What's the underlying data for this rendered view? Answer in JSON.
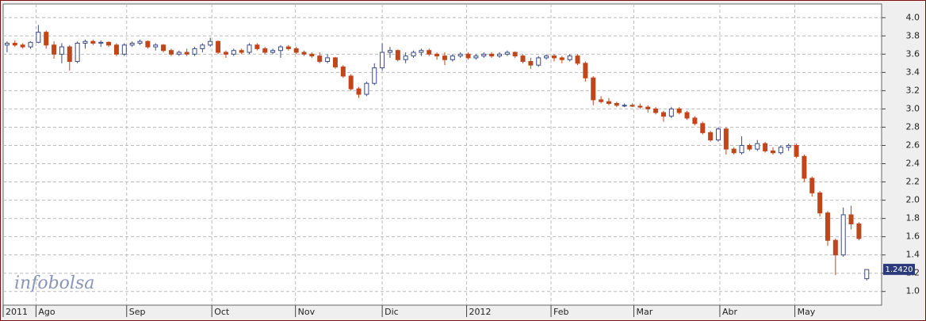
{
  "chart_data": {
    "type": "candlestick",
    "watermark": "infobolsa",
    "up_color": "#3a4a8a",
    "down_color": "#c0461b",
    "grid": true,
    "last_value": 1.242,
    "last_label": "1.2420",
    "xlim": [
      0,
      112.4
    ],
    "xticks": [
      {
        "value": 0,
        "label": "2011"
      },
      {
        "value": 4.2,
        "label": "Ago"
      },
      {
        "value": 15.8,
        "label": "Sep"
      },
      {
        "value": 26.7,
        "label": "Oct"
      },
      {
        "value": 37.4,
        "label": "Nov"
      },
      {
        "value": 48.5,
        "label": "Dic"
      },
      {
        "value": 59.3,
        "label": "2012"
      },
      {
        "value": 70.1,
        "label": "Feb"
      },
      {
        "value": 80.7,
        "label": "Mar"
      },
      {
        "value": 91.7,
        "label": "Abr"
      },
      {
        "value": 101.3,
        "label": "May"
      }
    ],
    "ylim": [
      0.85,
      4.15
    ],
    "yticks": [
      {
        "value": 1,
        "label": "1.0"
      },
      {
        "value": 1.2,
        "label": "1.2"
      },
      {
        "value": 1.4,
        "label": "1.4"
      },
      {
        "value": 1.6,
        "label": "1.6"
      },
      {
        "value": 1.8,
        "label": "1.8"
      },
      {
        "value": 2,
        "label": "2.0"
      },
      {
        "value": 2.2,
        "label": "2.2"
      },
      {
        "value": 2.4,
        "label": "2.4"
      },
      {
        "value": 2.6,
        "label": "2.6"
      },
      {
        "value": 2.8,
        "label": "2.8"
      },
      {
        "value": 3,
        "label": "3.0"
      },
      {
        "value": 3.2,
        "label": "3.2"
      },
      {
        "value": 3.4,
        "label": "3.4"
      },
      {
        "value": 3.6,
        "label": "3.6"
      },
      {
        "value": 3.8,
        "label": "3.8"
      },
      {
        "value": 4,
        "label": "4.0"
      }
    ],
    "candles": [
      [
        3.7,
        3.74,
        3.62,
        3.72
      ],
      [
        3.72,
        3.75,
        3.68,
        3.7
      ],
      [
        3.7,
        3.72,
        3.66,
        3.68
      ],
      [
        3.68,
        3.74,
        3.66,
        3.73
      ],
      [
        3.73,
        3.92,
        3.72,
        3.84
      ],
      [
        3.84,
        3.86,
        3.66,
        3.7
      ],
      [
        3.7,
        3.74,
        3.55,
        3.6
      ],
      [
        3.6,
        3.72,
        3.5,
        3.68
      ],
      [
        3.68,
        3.7,
        3.42,
        3.52
      ],
      [
        3.52,
        3.74,
        3.5,
        3.72
      ],
      [
        3.72,
        3.76,
        3.66,
        3.74
      ],
      [
        3.74,
        3.76,
        3.7,
        3.72
      ],
      [
        3.72,
        3.75,
        3.68,
        3.73
      ],
      [
        3.73,
        3.74,
        3.68,
        3.7
      ],
      [
        3.7,
        3.72,
        3.58,
        3.6
      ],
      [
        3.6,
        3.72,
        3.58,
        3.7
      ],
      [
        3.7,
        3.74,
        3.68,
        3.72
      ],
      [
        3.72,
        3.76,
        3.7,
        3.74
      ],
      [
        3.74,
        3.75,
        3.66,
        3.68
      ],
      [
        3.68,
        3.72,
        3.64,
        3.7
      ],
      [
        3.7,
        3.71,
        3.62,
        3.64
      ],
      [
        3.64,
        3.66,
        3.58,
        3.6
      ],
      [
        3.6,
        3.64,
        3.58,
        3.62
      ],
      [
        3.62,
        3.66,
        3.58,
        3.6
      ],
      [
        3.6,
        3.68,
        3.58,
        3.66
      ],
      [
        3.66,
        3.72,
        3.62,
        3.7
      ],
      [
        3.7,
        3.78,
        3.68,
        3.74
      ],
      [
        3.74,
        3.75,
        3.6,
        3.62
      ],
      [
        3.62,
        3.64,
        3.56,
        3.6
      ],
      [
        3.6,
        3.66,
        3.58,
        3.64
      ],
      [
        3.64,
        3.66,
        3.6,
        3.62
      ],
      [
        3.62,
        3.72,
        3.6,
        3.7
      ],
      [
        3.7,
        3.72,
        3.64,
        3.66
      ],
      [
        3.66,
        3.68,
        3.6,
        3.62
      ],
      [
        3.62,
        3.66,
        3.6,
        3.64
      ],
      [
        3.64,
        3.7,
        3.56,
        3.68
      ],
      [
        3.68,
        3.7,
        3.64,
        3.66
      ],
      [
        3.66,
        3.68,
        3.6,
        3.62
      ],
      [
        3.62,
        3.64,
        3.58,
        3.6
      ],
      [
        3.6,
        3.62,
        3.56,
        3.58
      ],
      [
        3.58,
        3.62,
        3.5,
        3.52
      ],
      [
        3.52,
        3.6,
        3.5,
        3.56
      ],
      [
        3.56,
        3.57,
        3.44,
        3.46
      ],
      [
        3.46,
        3.48,
        3.34,
        3.36
      ],
      [
        3.36,
        3.38,
        3.2,
        3.22
      ],
      [
        3.22,
        3.24,
        3.12,
        3.16
      ],
      [
        3.16,
        3.3,
        3.14,
        3.28
      ],
      [
        3.28,
        3.5,
        3.26,
        3.45
      ],
      [
        3.45,
        3.72,
        3.42,
        3.62
      ],
      [
        3.62,
        3.68,
        3.56,
        3.64
      ],
      [
        3.64,
        3.65,
        3.52,
        3.54
      ],
      [
        3.54,
        3.62,
        3.5,
        3.58
      ],
      [
        3.58,
        3.64,
        3.56,
        3.62
      ],
      [
        3.62,
        3.66,
        3.58,
        3.64
      ],
      [
        3.64,
        3.66,
        3.58,
        3.6
      ],
      [
        3.6,
        3.62,
        3.54,
        3.58
      ],
      [
        3.58,
        3.62,
        3.48,
        3.54
      ],
      [
        3.54,
        3.6,
        3.52,
        3.58
      ],
      [
        3.58,
        3.62,
        3.56,
        3.6
      ],
      [
        3.6,
        3.62,
        3.54,
        3.56
      ],
      [
        3.56,
        3.6,
        3.54,
        3.58
      ],
      [
        3.58,
        3.62,
        3.56,
        3.6
      ],
      [
        3.6,
        3.62,
        3.56,
        3.58
      ],
      [
        3.58,
        3.62,
        3.56,
        3.6
      ],
      [
        3.6,
        3.64,
        3.58,
        3.62
      ],
      [
        3.62,
        3.63,
        3.56,
        3.58
      ],
      [
        3.58,
        3.6,
        3.5,
        3.52
      ],
      [
        3.52,
        3.56,
        3.44,
        3.48
      ],
      [
        3.48,
        3.58,
        3.46,
        3.56
      ],
      [
        3.56,
        3.6,
        3.54,
        3.58
      ],
      [
        3.58,
        3.6,
        3.52,
        3.56
      ],
      [
        3.56,
        3.58,
        3.5,
        3.54
      ],
      [
        3.54,
        3.6,
        3.52,
        3.58
      ],
      [
        3.58,
        3.6,
        3.48,
        3.5
      ],
      [
        3.5,
        3.52,
        3.3,
        3.34
      ],
      [
        3.34,
        3.36,
        3.04,
        3.1
      ],
      [
        3.1,
        3.14,
        3.06,
        3.08
      ],
      [
        3.08,
        3.12,
        3.04,
        3.06
      ],
      [
        3.06,
        3.08,
        3.02,
        3.04
      ],
      [
        3.04,
        3.06,
        3.02,
        3.04
      ],
      [
        3.04,
        3.06,
        3.02,
        3.03
      ],
      [
        3.03,
        3.06,
        3.0,
        3.02
      ],
      [
        3.02,
        3.04,
        2.96,
        3.0
      ],
      [
        3.0,
        3.02,
        2.94,
        2.96
      ],
      [
        2.96,
        2.98,
        2.86,
        2.92
      ],
      [
        2.92,
        3.02,
        2.9,
        3.0
      ],
      [
        3.0,
        3.02,
        2.94,
        2.96
      ],
      [
        2.96,
        2.98,
        2.88,
        2.9
      ],
      [
        2.9,
        2.92,
        2.82,
        2.84
      ],
      [
        2.84,
        2.86,
        2.72,
        2.74
      ],
      [
        2.74,
        2.76,
        2.64,
        2.66
      ],
      [
        2.66,
        2.8,
        2.64,
        2.78
      ],
      [
        2.78,
        2.8,
        2.5,
        2.56
      ],
      [
        2.56,
        2.58,
        2.5,
        2.52
      ],
      [
        2.52,
        2.7,
        2.5,
        2.6
      ],
      [
        2.6,
        2.62,
        2.54,
        2.56
      ],
      [
        2.56,
        2.66,
        2.54,
        2.62
      ],
      [
        2.62,
        2.64,
        2.52,
        2.54
      ],
      [
        2.54,
        2.58,
        2.5,
        2.52
      ],
      [
        2.52,
        2.6,
        2.5,
        2.58
      ],
      [
        2.58,
        2.62,
        2.54,
        2.6
      ],
      [
        2.6,
        2.62,
        2.46,
        2.48
      ],
      [
        2.48,
        2.5,
        2.2,
        2.24
      ],
      [
        2.24,
        2.26,
        2.04,
        2.08
      ],
      [
        2.08,
        2.1,
        1.82,
        1.86
      ],
      [
        1.86,
        1.88,
        1.5,
        1.56
      ],
      [
        1.56,
        1.58,
        1.18,
        1.4
      ],
      [
        1.4,
        1.92,
        1.38,
        1.84
      ],
      [
        1.84,
        1.94,
        1.68,
        1.74
      ],
      [
        1.74,
        1.76,
        1.56,
        1.58
      ],
      [
        1.14,
        1.24,
        1.12,
        1.24
      ]
    ]
  }
}
